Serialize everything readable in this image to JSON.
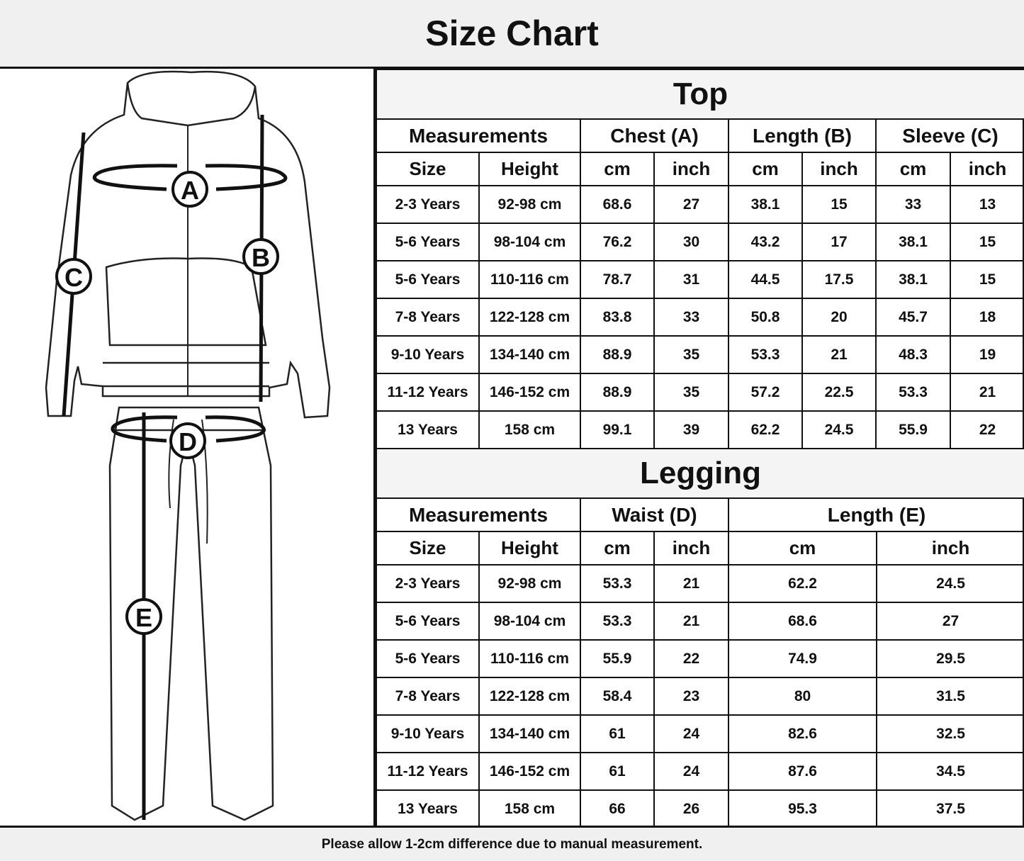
{
  "title": "Size Chart",
  "footer_note": "Please allow 1-2cm difference due to manual measurement.",
  "diagram_labels": {
    "chest": "A",
    "length_top": "B",
    "sleeve": "C",
    "waist": "D",
    "length_leg": "E"
  },
  "top": {
    "title": "Top",
    "groups": [
      "Measurements",
      "Chest (A)",
      "Length (B)",
      "Sleeve (C)"
    ],
    "subheaders": [
      "Size",
      "Height",
      "cm",
      "inch",
      "cm",
      "inch",
      "cm",
      "inch"
    ],
    "rows": [
      [
        "2-3 Years",
        "92-98 cm",
        "68.6",
        "27",
        "38.1",
        "15",
        "33",
        "13"
      ],
      [
        "5-6 Years",
        "98-104 cm",
        "76.2",
        "30",
        "43.2",
        "17",
        "38.1",
        "15"
      ],
      [
        "5-6 Years",
        "110-116 cm",
        "78.7",
        "31",
        "44.5",
        "17.5",
        "38.1",
        "15"
      ],
      [
        "7-8 Years",
        "122-128 cm",
        "83.8",
        "33",
        "50.8",
        "20",
        "45.7",
        "18"
      ],
      [
        "9-10 Years",
        "134-140 cm",
        "88.9",
        "35",
        "53.3",
        "21",
        "48.3",
        "19"
      ],
      [
        "11-12 Years",
        "146-152 cm",
        "88.9",
        "35",
        "57.2",
        "22.5",
        "53.3",
        "21"
      ],
      [
        "13 Years",
        "158 cm",
        "99.1",
        "39",
        "62.2",
        "24.5",
        "55.9",
        "22"
      ]
    ]
  },
  "legging": {
    "title": "Legging",
    "groups": [
      "Measurements",
      "Waist (D)",
      "Length (E)"
    ],
    "subheaders": [
      "Size",
      "Height",
      "cm",
      "inch",
      "cm",
      "inch"
    ],
    "rows": [
      [
        "2-3 Years",
        "92-98 cm",
        "53.3",
        "21",
        "62.2",
        "24.5"
      ],
      [
        "5-6 Years",
        "98-104 cm",
        "53.3",
        "21",
        "68.6",
        "27"
      ],
      [
        "5-6 Years",
        "110-116 cm",
        "55.9",
        "22",
        "74.9",
        "29.5"
      ],
      [
        "7-8 Years",
        "122-128 cm",
        "58.4",
        "23",
        "80",
        "31.5"
      ],
      [
        "9-10 Years",
        "134-140 cm",
        "61",
        "24",
        "82.6",
        "32.5"
      ],
      [
        "11-12 Years",
        "146-152 cm",
        "61",
        "24",
        "87.6",
        "34.5"
      ],
      [
        "13 Years",
        "158 cm",
        "66",
        "26",
        "95.3",
        "37.5"
      ]
    ]
  }
}
